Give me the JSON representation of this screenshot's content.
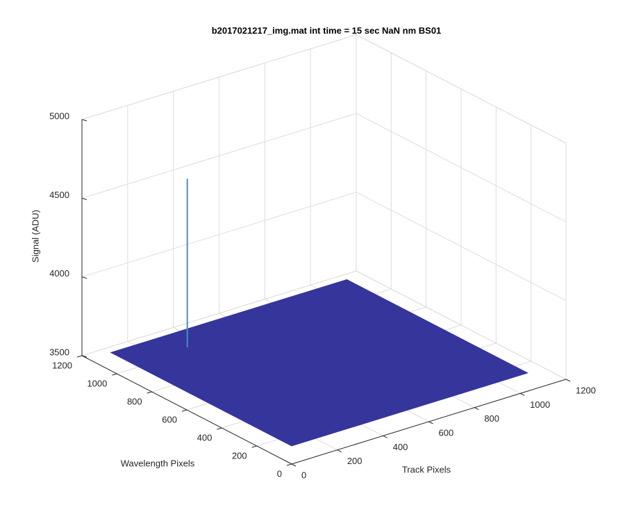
{
  "chart_data": {
    "type": "surface3d",
    "title": "b2017021217_img.mat int time = 15 sec  NaN nm BS01",
    "xlabel": "Track Pixels",
    "ylabel": "Wavelength Pixels",
    "zlabel": "Signal (ADU)",
    "xlim": [
      0,
      1200
    ],
    "ylim": [
      0,
      1200
    ],
    "zlim": [
      3500,
      5000
    ],
    "xticks": [
      0,
      200,
      400,
      600,
      800,
      1000,
      1200
    ],
    "yticks": [
      0,
      200,
      400,
      600,
      800,
      1000,
      1200
    ],
    "zticks": [
      3500,
      4000,
      4500,
      5000
    ],
    "grid": true,
    "color": "#35359c",
    "surface": {
      "xlim": [
        0,
        1024
      ],
      "ylim": [
        0,
        1024
      ],
      "level": 3620
    },
    "peak": {
      "x": 233,
      "y": 902,
      "z": 4690,
      "color": "#4a8fc0"
    }
  }
}
